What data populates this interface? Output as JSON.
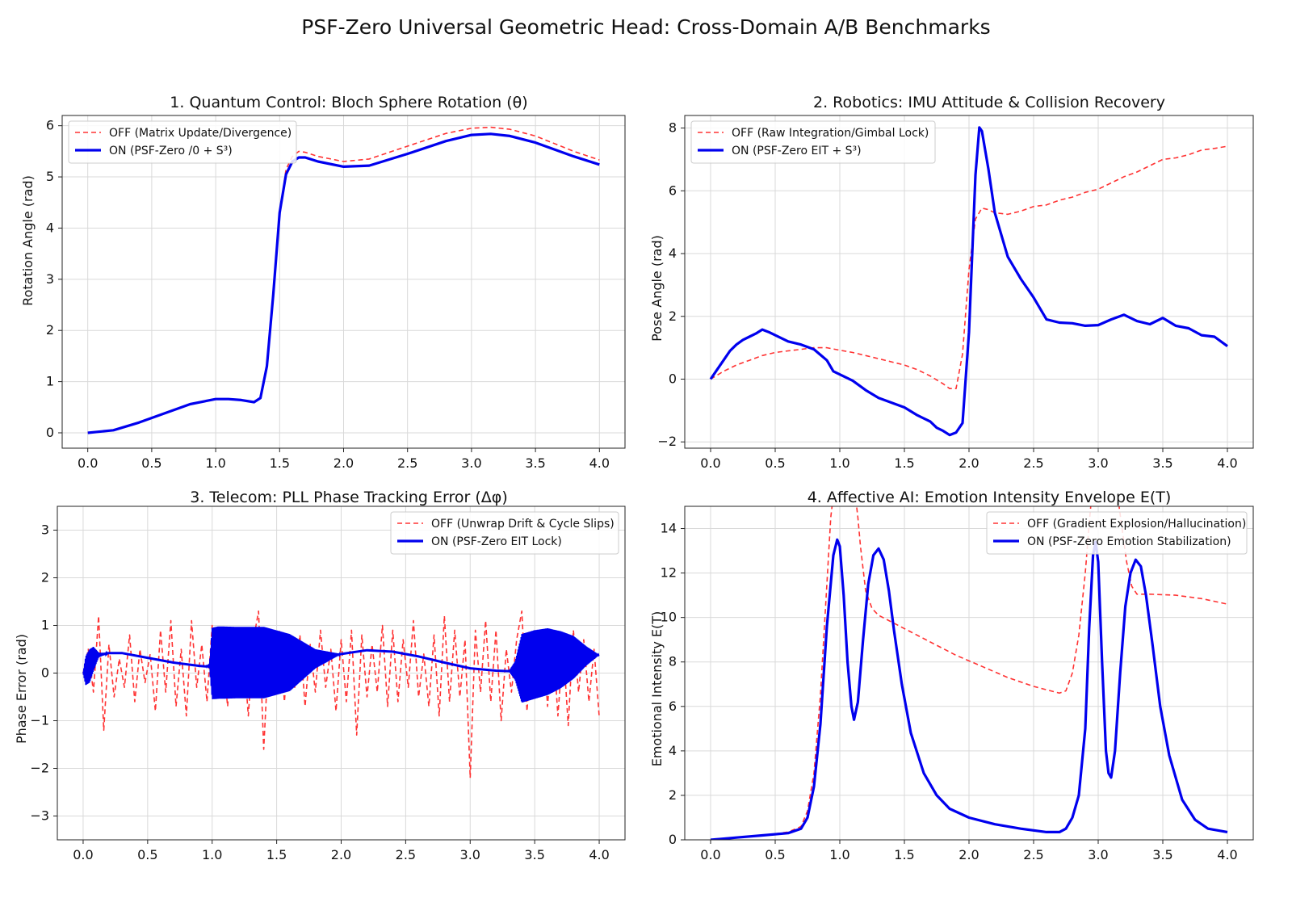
{
  "figure": {
    "suptitle": "PSF-Zero Universal Geometric Head: Cross-Domain A/B Benchmarks"
  },
  "colors": {
    "off": "#ff3333",
    "on": "#0000ee",
    "grid": "#d9d9d9",
    "axes": "#222222"
  },
  "chart_data": [
    {
      "type": "line",
      "title": "1. Quantum Control: Bloch Sphere Rotation (θ)",
      "xlabel": "",
      "ylabel": "Rotation Angle (rad)",
      "xlim": [
        -0.2,
        4.2
      ],
      "ylim": [
        -0.3,
        6.2
      ],
      "xticks": [
        0,
        0.5,
        1,
        1.5,
        2,
        2.5,
        3,
        3.5,
        4
      ],
      "xtick_labels": [
        "0.0",
        "0.5",
        "1.0",
        "1.5",
        "2.0",
        "2.5",
        "3.0",
        "3.5",
        "4.0"
      ],
      "yticks": [
        0,
        1,
        2,
        3,
        4,
        5,
        6
      ],
      "ytick_labels": [
        "0",
        "1",
        "2",
        "3",
        "4",
        "5",
        "6"
      ],
      "grid": true,
      "legend": "top-left",
      "series": [
        {
          "name": "OFF (Matrix Update/Divergence)",
          "style": "dashed",
          "x": [
            0,
            0.2,
            0.4,
            0.6,
            0.8,
            1.0,
            1.1,
            1.2,
            1.3,
            1.35,
            1.4,
            1.45,
            1.5,
            1.55,
            1.6,
            1.65,
            1.7,
            1.8,
            2.0,
            2.2,
            2.5,
            2.8,
            3.0,
            3.15,
            3.3,
            3.5,
            3.8,
            4.0
          ],
          "y": [
            0,
            0.05,
            0.2,
            0.38,
            0.56,
            0.66,
            0.66,
            0.64,
            0.6,
            0.68,
            1.3,
            2.7,
            4.3,
            5.15,
            5.4,
            5.5,
            5.48,
            5.4,
            5.3,
            5.35,
            5.6,
            5.85,
            5.95,
            5.97,
            5.93,
            5.8,
            5.5,
            5.33
          ]
        },
        {
          "name": "ON (PSF-Zero /0 + S³)",
          "style": "solid",
          "x": [
            0,
            0.2,
            0.4,
            0.6,
            0.8,
            1.0,
            1.1,
            1.2,
            1.3,
            1.35,
            1.4,
            1.45,
            1.5,
            1.55,
            1.6,
            1.65,
            1.7,
            1.8,
            2.0,
            2.2,
            2.5,
            2.8,
            3.0,
            3.15,
            3.3,
            3.5,
            3.8,
            4.0
          ],
          "y": [
            0,
            0.05,
            0.2,
            0.38,
            0.56,
            0.66,
            0.66,
            0.64,
            0.6,
            0.68,
            1.3,
            2.7,
            4.3,
            5.05,
            5.3,
            5.38,
            5.38,
            5.3,
            5.2,
            5.22,
            5.45,
            5.7,
            5.82,
            5.84,
            5.8,
            5.67,
            5.4,
            5.24
          ]
        }
      ]
    },
    {
      "type": "line",
      "title": "2. Robotics: IMU Attitude & Collision Recovery",
      "xlabel": "",
      "ylabel": "Pose Angle (rad)",
      "xlim": [
        -0.2,
        4.2
      ],
      "ylim": [
        -2.2,
        8.4
      ],
      "xticks": [
        0,
        0.5,
        1,
        1.5,
        2,
        2.5,
        3,
        3.5,
        4
      ],
      "xtick_labels": [
        "0.0",
        "0.5",
        "1.0",
        "1.5",
        "2.0",
        "2.5",
        "3.0",
        "3.5",
        "4.0"
      ],
      "yticks": [
        -2,
        0,
        2,
        4,
        6,
        8
      ],
      "ytick_labels": [
        "−2",
        "0",
        "2",
        "4",
        "6",
        "8"
      ],
      "grid": true,
      "legend": "top-left",
      "series": [
        {
          "name": "OFF (Raw Integration/Gimbal Lock)",
          "style": "dashed",
          "x": [
            0,
            0.1,
            0.2,
            0.3,
            0.4,
            0.5,
            0.6,
            0.7,
            0.8,
            0.9,
            1.0,
            1.1,
            1.2,
            1.3,
            1.4,
            1.5,
            1.6,
            1.7,
            1.8,
            1.85,
            1.9,
            1.95,
            2.0,
            2.05,
            2.1,
            2.15,
            2.2,
            2.3,
            2.4,
            2.5,
            2.6,
            2.7,
            2.8,
            2.9,
            3.0,
            3.1,
            3.2,
            3.3,
            3.4,
            3.5,
            3.6,
            3.7,
            3.8,
            3.9,
            4.0
          ],
          "y": [
            0,
            0.25,
            0.45,
            0.6,
            0.75,
            0.85,
            0.9,
            0.95,
            1.0,
            1.0,
            0.92,
            0.85,
            0.75,
            0.65,
            0.55,
            0.45,
            0.3,
            0.1,
            -0.15,
            -0.3,
            -0.3,
            0.8,
            3.5,
            5.1,
            5.45,
            5.4,
            5.3,
            5.25,
            5.35,
            5.5,
            5.55,
            5.7,
            5.8,
            5.95,
            6.05,
            6.25,
            6.45,
            6.6,
            6.8,
            7.0,
            7.05,
            7.15,
            7.3,
            7.35,
            7.42
          ]
        },
        {
          "name": "ON (PSF-Zero EIT + S³)",
          "style": "solid",
          "x": [
            0,
            0.05,
            0.1,
            0.15,
            0.2,
            0.25,
            0.3,
            0.35,
            0.4,
            0.45,
            0.5,
            0.6,
            0.7,
            0.8,
            0.9,
            0.95,
            1.0,
            1.1,
            1.2,
            1.3,
            1.4,
            1.5,
            1.6,
            1.7,
            1.75,
            1.8,
            1.85,
            1.9,
            1.95,
            2.0,
            2.05,
            2.08,
            2.1,
            2.15,
            2.2,
            2.3,
            2.4,
            2.5,
            2.6,
            2.7,
            2.8,
            2.9,
            3.0,
            3.1,
            3.2,
            3.3,
            3.4,
            3.5,
            3.6,
            3.7,
            3.8,
            3.9,
            4.0
          ],
          "y": [
            0,
            0.3,
            0.6,
            0.9,
            1.1,
            1.25,
            1.35,
            1.45,
            1.58,
            1.5,
            1.4,
            1.2,
            1.1,
            0.95,
            0.6,
            0.25,
            0.15,
            -0.05,
            -0.35,
            -0.6,
            -0.75,
            -0.9,
            -1.15,
            -1.35,
            -1.55,
            -1.65,
            -1.78,
            -1.7,
            -1.4,
            1.5,
            6.5,
            8.02,
            7.9,
            6.7,
            5.3,
            3.9,
            3.2,
            2.6,
            1.9,
            1.8,
            1.78,
            1.7,
            1.72,
            1.9,
            2.05,
            1.85,
            1.75,
            1.95,
            1.7,
            1.62,
            1.4,
            1.35,
            1.05
          ]
        }
      ]
    },
    {
      "type": "line",
      "title": "3. Telecom: PLL Phase Tracking Error (Δφ)",
      "xlabel": "",
      "ylabel": "Phase Error (rad)",
      "xlim": [
        -0.2,
        4.2
      ],
      "ylim": [
        -3.5,
        3.5
      ],
      "xticks": [
        0,
        0.5,
        1,
        1.5,
        2,
        2.5,
        3,
        3.5,
        4
      ],
      "xtick_labels": [
        "0.0",
        "0.5",
        "1.0",
        "1.5",
        "2.0",
        "2.5",
        "3.0",
        "3.5",
        "4.0"
      ],
      "yticks": [
        -3,
        -2,
        -1,
        0,
        1,
        2,
        3
      ],
      "ytick_labels": [
        "−3",
        "−2",
        "−1",
        "0",
        "1",
        "2",
        "3"
      ],
      "grid": true,
      "legend": "top-right",
      "series": [
        {
          "name": "OFF (Unwrap Drift & Cycle Slips)",
          "style": "dashed",
          "x": [
            0.0,
            0.04,
            0.08,
            0.12,
            0.16,
            0.2,
            0.24,
            0.28,
            0.32,
            0.36,
            0.4,
            0.44,
            0.48,
            0.52,
            0.56,
            0.6,
            0.64,
            0.68,
            0.72,
            0.76,
            0.8,
            0.84,
            0.88,
            0.92,
            0.96,
            1.0,
            1.04,
            1.08,
            1.12,
            1.16,
            1.2,
            1.24,
            1.28,
            1.32,
            1.36,
            1.4,
            1.44,
            1.48,
            1.52,
            1.56,
            1.6,
            1.64,
            1.68,
            1.72,
            1.76,
            1.8,
            1.84,
            1.88,
            1.92,
            1.96,
            2.0,
            2.04,
            2.08,
            2.12,
            2.16,
            2.2,
            2.24,
            2.28,
            2.32,
            2.36,
            2.4,
            2.44,
            2.48,
            2.52,
            2.56,
            2.6,
            2.64,
            2.68,
            2.72,
            2.76,
            2.8,
            2.84,
            2.88,
            2.92,
            2.96,
            3.0,
            3.04,
            3.08,
            3.12,
            3.16,
            3.2,
            3.24,
            3.28,
            3.32,
            3.36,
            3.4,
            3.44,
            3.48,
            3.52,
            3.56,
            3.6,
            3.64,
            3.68,
            3.72,
            3.76,
            3.8,
            3.84,
            3.88,
            3.92,
            3.96,
            4.0
          ],
          "y": [
            0.0,
            0.5,
            -0.4,
            1.2,
            -1.2,
            0.6,
            -0.5,
            0.3,
            -0.3,
            0.8,
            -0.6,
            0.5,
            -0.2,
            0.4,
            -0.8,
            0.9,
            -0.4,
            1.1,
            -0.7,
            0.5,
            -0.9,
            1.1,
            -0.3,
            0.6,
            -0.6,
            1.0,
            -0.4,
            0.4,
            -0.7,
            0.9,
            -0.5,
            0.6,
            -0.9,
            0.7,
            1.3,
            -1.6,
            0.6,
            -0.4,
            0.9,
            -0.6,
            0.7,
            -0.3,
            0.8,
            -0.7,
            0.6,
            -0.4,
            0.9,
            -0.3,
            0.5,
            -0.8,
            0.7,
            -0.6,
            0.9,
            -1.3,
            0.8,
            -0.5,
            0.6,
            -0.4,
            1.0,
            -0.7,
            0.9,
            -0.6,
            0.7,
            -0.3,
            1.1,
            -0.5,
            0.4,
            -0.7,
            0.8,
            -0.9,
            1.2,
            -0.6,
            0.9,
            -0.5,
            0.7,
            -2.2,
            0.9,
            -0.4,
            1.1,
            -0.6,
            0.9,
            -1.0,
            0.5,
            -0.4,
            0.7,
            1.3,
            -0.8,
            0.6,
            -0.5,
            0.9,
            -0.7,
            0.8,
            -0.9,
            0.6,
            -1.1,
            0.9,
            -0.4,
            0.7,
            -0.6,
            0.5,
            -0.9
          ]
        },
        {
          "name": "ON (PSF-Zero EIT Lock)",
          "style": "solid",
          "envelope": true,
          "x": [
            0,
            0.02,
            0.05,
            0.08,
            0.12,
            0.2,
            0.3,
            0.5,
            0.7,
            0.9,
            0.95,
            0.98,
            1.0,
            1.05,
            1.2,
            1.4,
            1.6,
            1.8,
            2.0,
            2.2,
            2.4,
            2.6,
            2.8,
            3.0,
            3.2,
            3.3,
            3.35,
            3.4,
            3.5,
            3.6,
            3.7,
            3.8,
            3.9,
            4.0
          ],
          "y": [
            0,
            0.05,
            0.15,
            0.3,
            0.38,
            0.42,
            0.42,
            0.32,
            0.22,
            0.15,
            0.14,
            0.15,
            0.2,
            0.22,
            0.22,
            0.22,
            0.22,
            0.3,
            0.4,
            0.48,
            0.45,
            0.35,
            0.22,
            0.1,
            0.05,
            0.04,
            0.05,
            0.1,
            0.18,
            0.24,
            0.28,
            0.33,
            0.36,
            0.38
          ],
          "amp": [
            0,
            0.3,
            0.35,
            0.25,
            0.05,
            0,
            0,
            0,
            0,
            0,
            0,
            0.05,
            0.75,
            0.76,
            0.75,
            0.75,
            0.6,
            0.2,
            0,
            0,
            0,
            0,
            0,
            0,
            0,
            0,
            0.2,
            0.72,
            0.72,
            0.7,
            0.6,
            0.45,
            0.2,
            0
          ]
        }
      ]
    },
    {
      "type": "line",
      "title": "4. Affective AI: Emotion Intensity Envelope E(T)",
      "xlabel": "",
      "ylabel": "Emotional Intensity E(T)",
      "xlim": [
        -0.2,
        4.2
      ],
      "ylim": [
        0,
        15
      ],
      "xticks": [
        0,
        0.5,
        1,
        1.5,
        2,
        2.5,
        3,
        3.5,
        4
      ],
      "xtick_labels": [
        "0.0",
        "0.5",
        "1.0",
        "1.5",
        "2.0",
        "2.5",
        "3.0",
        "3.5",
        "4.0"
      ],
      "yticks": [
        0,
        2,
        4,
        6,
        8,
        10,
        12,
        14
      ],
      "ytick_labels": [
        "0",
        "2",
        "4",
        "6",
        "8",
        "10",
        "12",
        "14"
      ],
      "grid": true,
      "legend": "top-right",
      "series": [
        {
          "name": "OFF (Gradient Explosion/Hallucination)",
          "style": "dashed",
          "x": [
            0,
            0.2,
            0.4,
            0.6,
            0.7,
            0.75,
            0.8,
            0.85,
            0.9,
            0.93,
            0.95,
            1.12,
            1.14,
            1.16,
            1.2,
            1.25,
            1.3,
            1.4,
            1.5,
            1.7,
            1.9,
            2.1,
            2.3,
            2.5,
            2.7,
            2.75,
            2.8,
            2.85,
            2.9,
            2.93,
            2.95,
            3.15,
            3.18,
            3.22,
            3.26,
            3.3,
            3.4,
            3.6,
            3.8,
            4.0
          ],
          "y": [
            0,
            0.1,
            0.2,
            0.35,
            0.6,
            1.3,
            3.0,
            6.5,
            11.5,
            14.5,
            15.5,
            15.5,
            14.5,
            13.2,
            11.2,
            10.4,
            10.1,
            9.8,
            9.5,
            8.9,
            8.3,
            7.8,
            7.3,
            6.9,
            6.6,
            6.7,
            7.5,
            9.2,
            12.0,
            14.2,
            15.5,
            15.5,
            14.2,
            12.5,
            11.4,
            11.05,
            11.05,
            11.0,
            10.85,
            10.6
          ]
        },
        {
          "name": "ON (PSF-Zero Emotion Stabilization)",
          "style": "solid",
          "x": [
            0,
            0.2,
            0.4,
            0.6,
            0.7,
            0.75,
            0.8,
            0.85,
            0.9,
            0.95,
            0.98,
            1.0,
            1.03,
            1.06,
            1.09,
            1.11,
            1.14,
            1.18,
            1.22,
            1.26,
            1.3,
            1.34,
            1.38,
            1.42,
            1.48,
            1.55,
            1.65,
            1.75,
            1.85,
            2.0,
            2.2,
            2.4,
            2.6,
            2.7,
            2.75,
            2.8,
            2.85,
            2.9,
            2.93,
            2.96,
            2.98,
            3.0,
            3.03,
            3.06,
            3.08,
            3.1,
            3.13,
            3.17,
            3.21,
            3.25,
            3.29,
            3.33,
            3.37,
            3.42,
            3.48,
            3.55,
            3.65,
            3.75,
            3.85,
            4.0
          ],
          "y": [
            0,
            0.1,
            0.2,
            0.3,
            0.5,
            1.0,
            2.4,
            5.2,
            9.6,
            12.8,
            13.5,
            13.2,
            11.0,
            8.0,
            6.0,
            5.4,
            6.2,
            9.0,
            11.5,
            12.8,
            13.1,
            12.6,
            11.2,
            9.4,
            7.0,
            4.8,
            3.0,
            2.0,
            1.4,
            1.0,
            0.7,
            0.5,
            0.35,
            0.35,
            0.5,
            1.0,
            2.0,
            5.0,
            9.5,
            12.8,
            13.4,
            12.5,
            8.0,
            4.0,
            3.0,
            2.8,
            4.0,
            7.5,
            10.5,
            12.0,
            12.6,
            12.3,
            11.0,
            8.8,
            6.0,
            3.8,
            1.8,
            0.9,
            0.5,
            0.35
          ]
        }
      ]
    }
  ]
}
